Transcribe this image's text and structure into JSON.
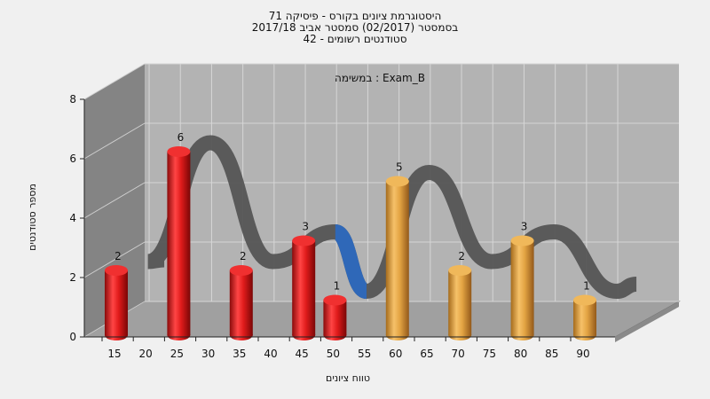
{
  "chart_data": {
    "type": "bar",
    "title_lines": [
      "היסטוגרמת ציונים בקורס - פיסיקה 71",
      "בסמסטר  (02/2017)  סמסטר אביב 2017/18",
      "סטודנטים רשומים - 42"
    ],
    "annotation": "במשימה : Exam_B",
    "xlabel": "טווח ציונים",
    "ylabel": "מספר סטודנטים",
    "y_ticks": [
      "0",
      "2",
      "4",
      "6",
      "8"
    ],
    "ylim": [
      0,
      8
    ],
    "x_ticks": [
      "15",
      "20",
      "25",
      "30",
      "35",
      "40",
      "45",
      "50",
      "55",
      "60",
      "65",
      "70",
      "75",
      "80",
      "85",
      "90"
    ],
    "grid": true,
    "series": [
      {
        "bins": [
          "15",
          "25",
          "35",
          "45",
          "50",
          "60",
          "70",
          "80",
          "90"
        ],
        "values": [
          2,
          6,
          2,
          3,
          1,
          5,
          2,
          3,
          1
        ],
        "colors": [
          "#e02020",
          "#e02020",
          "#e02020",
          "#e02020",
          "#e02020",
          "#e8a640",
          "#e8a640",
          "#e8a640",
          "#e8a640"
        ]
      }
    ],
    "curve_colors": {
      "ribbon": "#555555",
      "highlight": "#2f68b8"
    },
    "wall_colors": {
      "back": "#b3b3b3",
      "side": "#848484",
      "floor": "#a0a0a0"
    }
  }
}
